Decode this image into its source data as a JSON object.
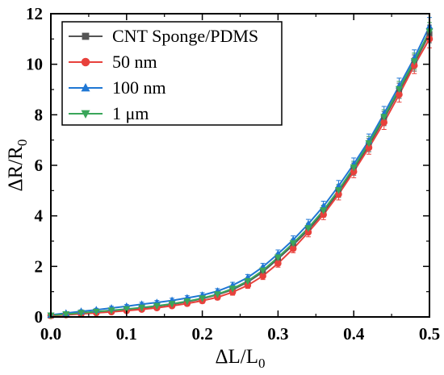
{
  "chart_data": {
    "type": "line",
    "xlabel_main": "ΔL/L",
    "xlabel_sub": "0",
    "ylabel_main": "ΔR/R",
    "ylabel_sub": "0",
    "xlim": [
      0.0,
      0.5
    ],
    "ylim": [
      0,
      12
    ],
    "xticks": [
      0.0,
      0.1,
      0.2,
      0.3,
      0.4,
      0.5
    ],
    "xtick_labels": [
      "0.0",
      "0.1",
      "0.2",
      "0.3",
      "0.4",
      "0.5"
    ],
    "yticks": [
      0,
      2,
      4,
      6,
      8,
      10,
      12
    ],
    "ytick_labels": [
      "0",
      "2",
      "4",
      "6",
      "8",
      "10",
      "12"
    ],
    "grid": false,
    "legend_position": "top-left",
    "x": [
      0.0,
      0.02,
      0.04,
      0.06,
      0.08,
      0.1,
      0.12,
      0.14,
      0.16,
      0.18,
      0.2,
      0.22,
      0.24,
      0.26,
      0.28,
      0.3,
      0.32,
      0.34,
      0.36,
      0.38,
      0.4,
      0.42,
      0.44,
      0.46,
      0.48,
      0.5
    ],
    "series": [
      {
        "name": "CNT Sponge/PDMS",
        "color": "#555555",
        "marker": "square",
        "values": [
          0.05,
          0.1,
          0.15,
          0.2,
          0.25,
          0.3,
          0.35,
          0.42,
          0.5,
          0.6,
          0.72,
          0.88,
          1.08,
          1.38,
          1.78,
          2.3,
          2.85,
          3.45,
          4.15,
          4.95,
          5.85,
          6.8,
          7.85,
          8.95,
          10.05,
          11.2
        ],
        "errors": [
          0.03,
          0.05,
          0.06,
          0.06,
          0.07,
          0.07,
          0.08,
          0.08,
          0.09,
          0.09,
          0.1,
          0.1,
          0.12,
          0.12,
          0.14,
          0.15,
          0.16,
          0.18,
          0.2,
          0.22,
          0.24,
          0.26,
          0.28,
          0.3,
          0.32,
          0.35
        ]
      },
      {
        "name": "50 nm",
        "color": "#e8413c",
        "marker": "circle",
        "values": [
          0.05,
          0.08,
          0.12,
          0.16,
          0.2,
          0.25,
          0.3,
          0.36,
          0.44,
          0.53,
          0.64,
          0.78,
          0.98,
          1.25,
          1.62,
          2.12,
          2.7,
          3.35,
          4.05,
          4.85,
          5.75,
          6.7,
          7.7,
          8.8,
          9.95,
          11.0
        ],
        "errors": [
          0.03,
          0.05,
          0.06,
          0.06,
          0.07,
          0.07,
          0.08,
          0.08,
          0.09,
          0.09,
          0.1,
          0.1,
          0.12,
          0.12,
          0.14,
          0.15,
          0.16,
          0.18,
          0.2,
          0.22,
          0.24,
          0.26,
          0.28,
          0.3,
          0.32,
          0.35
        ]
      },
      {
        "name": "100 nm",
        "color": "#1f77d4",
        "marker": "triangle-up",
        "values": [
          0.08,
          0.15,
          0.22,
          0.28,
          0.35,
          0.42,
          0.5,
          0.57,
          0.65,
          0.75,
          0.86,
          1.02,
          1.25,
          1.56,
          1.98,
          2.5,
          3.05,
          3.68,
          4.38,
          5.18,
          6.05,
          6.98,
          8.05,
          9.15,
          10.25,
          11.5
        ],
        "errors": [
          0.03,
          0.05,
          0.06,
          0.06,
          0.07,
          0.07,
          0.08,
          0.08,
          0.09,
          0.09,
          0.1,
          0.1,
          0.12,
          0.12,
          0.14,
          0.15,
          0.16,
          0.18,
          0.2,
          0.22,
          0.24,
          0.26,
          0.28,
          0.3,
          0.32,
          0.35
        ]
      },
      {
        "name": "1 μm",
        "color": "#3aa65a",
        "marker": "triangle-down",
        "values": [
          0.06,
          0.11,
          0.16,
          0.21,
          0.26,
          0.31,
          0.37,
          0.44,
          0.52,
          0.62,
          0.74,
          0.9,
          1.12,
          1.42,
          1.84,
          2.36,
          2.92,
          3.52,
          4.22,
          5.02,
          5.92,
          6.88,
          7.92,
          9.02,
          10.12,
          11.3
        ],
        "errors": [
          0.03,
          0.05,
          0.06,
          0.06,
          0.07,
          0.07,
          0.08,
          0.08,
          0.09,
          0.09,
          0.1,
          0.1,
          0.12,
          0.12,
          0.14,
          0.15,
          0.16,
          0.18,
          0.2,
          0.22,
          0.24,
          0.26,
          0.28,
          0.3,
          0.32,
          0.35
        ]
      }
    ]
  }
}
